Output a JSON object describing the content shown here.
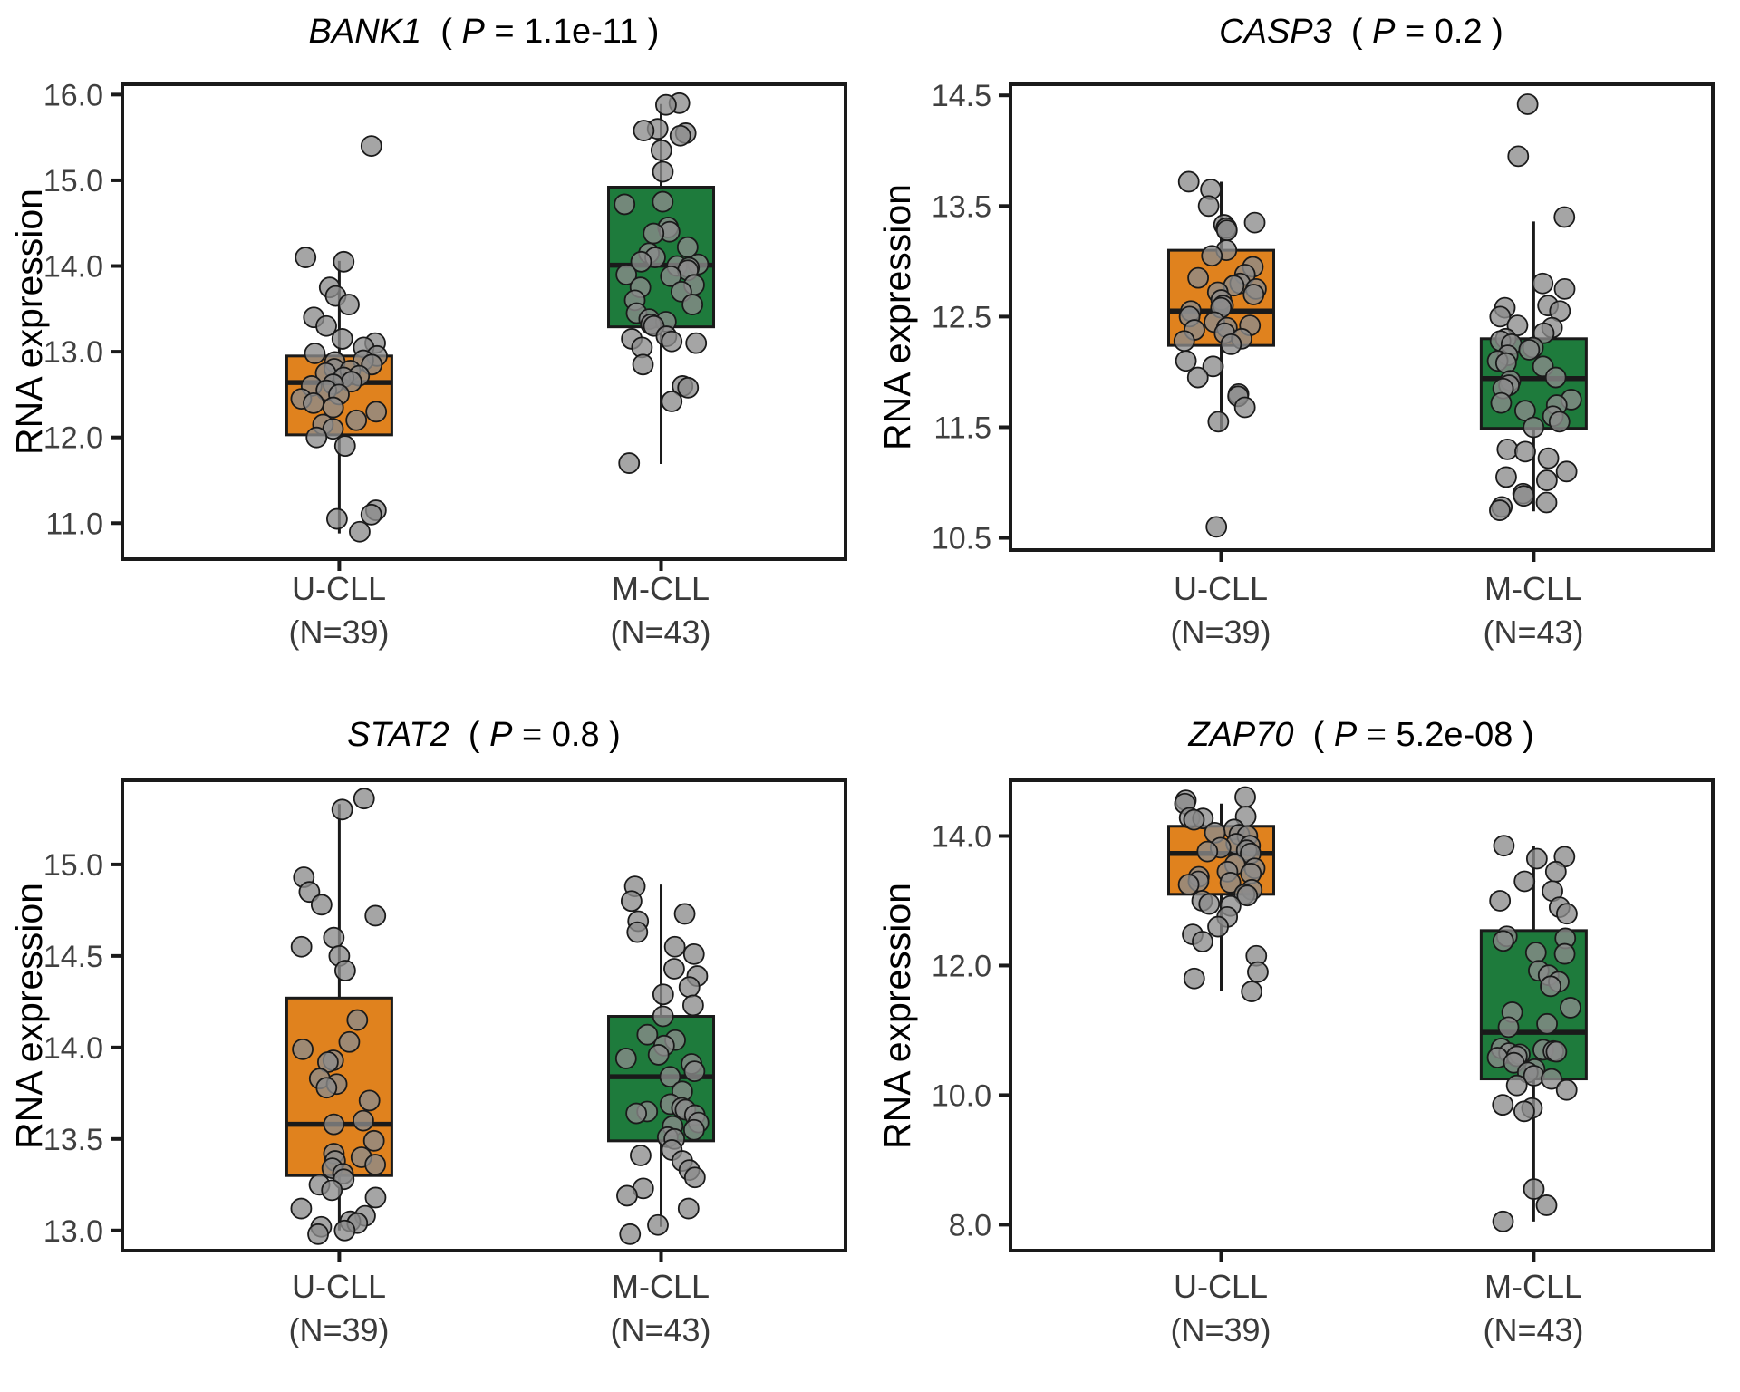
{
  "figure": {
    "background": "#FFFFFF"
  },
  "styles": {
    "ucll_color": "#E0821E",
    "mcll_color": "#1E7B3C",
    "point_fill": "#8C8C8C",
    "point_stroke": "#1A1A1A",
    "box_stroke": "#1A1A1A",
    "axis_text_color": "#404040",
    "title_color": "#000000"
  },
  "chart_data": [
    {
      "type": "box",
      "gene": "BANK1",
      "title_open": "  ( ",
      "p_letter": "P",
      "p_rest": " = 1.1e-11 )",
      "p_value": "1.1e-11",
      "ylabel": "RNA expression",
      "ylim": [
        10.58,
        16.12
      ],
      "yticks": [
        {
          "v": 11.0,
          "label": "11.0"
        },
        {
          "v": 12.0,
          "label": "12.0"
        },
        {
          "v": 13.0,
          "label": "13.0"
        },
        {
          "v": 14.0,
          "label": "14.0"
        },
        {
          "v": 15.0,
          "label": "15.0"
        },
        {
          "v": 16.0,
          "label": "16.0"
        }
      ],
      "groups": [
        {
          "label": "U-CLL",
          "n_label": "(N=39)",
          "n": 39,
          "color": "#E0821E",
          "box": {
            "whisker_low": 10.88,
            "q1": 12.03,
            "median": 12.64,
            "q3": 12.95,
            "whisker_high": 14.06
          },
          "points": [
            15.4,
            14.1,
            14.05,
            13.75,
            13.65,
            13.55,
            13.4,
            13.3,
            13.15,
            13.1,
            13.05,
            12.98,
            12.95,
            12.9,
            12.88,
            12.85,
            12.8,
            12.78,
            12.75,
            12.72,
            12.7,
            12.65,
            12.62,
            12.6,
            12.55,
            12.5,
            12.45,
            12.4,
            12.35,
            12.3,
            12.2,
            12.15,
            12.1,
            12.0,
            11.9,
            11.15,
            11.1,
            11.05,
            10.9
          ]
        },
        {
          "label": "M-CLL",
          "n_label": "(N=43)",
          "n": 43,
          "color": "#1E7B3C",
          "box": {
            "whisker_low": 11.69,
            "q1": 13.29,
            "median": 14.01,
            "q3": 14.92,
            "whisker_high": 15.89
          },
          "points": [
            15.9,
            15.88,
            15.6,
            15.58,
            15.55,
            15.52,
            15.35,
            15.1,
            14.75,
            14.72,
            14.45,
            14.4,
            14.38,
            14.22,
            14.15,
            14.1,
            14.05,
            14.02,
            14.0,
            13.98,
            13.95,
            13.9,
            13.88,
            13.78,
            13.75,
            13.7,
            13.6,
            13.55,
            13.45,
            13.38,
            13.35,
            13.32,
            13.3,
            13.18,
            13.15,
            13.12,
            13.1,
            13.05,
            12.85,
            12.6,
            12.58,
            12.42,
            11.7
          ]
        }
      ]
    },
    {
      "type": "box",
      "gene": "CASP3",
      "title_open": "  ( ",
      "p_letter": "P",
      "p_rest": " = 0.2 )",
      "p_value": "0.2",
      "ylabel": "RNA expression",
      "ylim": [
        10.39,
        14.6
      ],
      "yticks": [
        {
          "v": 10.5,
          "label": "10.5"
        },
        {
          "v": 11.5,
          "label": "11.5"
        },
        {
          "v": 12.5,
          "label": "12.5"
        },
        {
          "v": 13.5,
          "label": "13.5"
        },
        {
          "v": 14.5,
          "label": "14.5"
        }
      ],
      "groups": [
        {
          "label": "U-CLL",
          "n_label": "(N=39)",
          "n": 39,
          "color": "#E0821E",
          "box": {
            "whisker_low": 11.48,
            "q1": 12.24,
            "median": 12.55,
            "q3": 13.1,
            "whisker_high": 13.72
          },
          "points": [
            13.72,
            13.65,
            13.5,
            13.35,
            13.33,
            13.3,
            13.3,
            13.28,
            13.1,
            13.05,
            12.95,
            12.88,
            12.85,
            12.8,
            12.78,
            12.75,
            12.72,
            12.7,
            12.65,
            12.6,
            12.58,
            12.55,
            12.5,
            12.45,
            12.42,
            12.4,
            12.38,
            12.35,
            12.3,
            12.28,
            12.25,
            12.1,
            12.05,
            11.95,
            11.8,
            11.78,
            11.68,
            11.55,
            10.6
          ]
        },
        {
          "label": "M-CLL",
          "n_label": "(N=43)",
          "n": 43,
          "color": "#1E7B3C",
          "box": {
            "whisker_low": 10.74,
            "q1": 11.49,
            "median": 11.94,
            "q3": 12.3,
            "whisker_high": 13.36
          },
          "points": [
            14.42,
            13.95,
            13.4,
            12.8,
            12.75,
            12.6,
            12.58,
            12.55,
            12.5,
            12.42,
            12.4,
            12.35,
            12.3,
            12.28,
            12.25,
            12.22,
            12.2,
            12.15,
            12.1,
            12.08,
            12.05,
            11.95,
            11.92,
            11.88,
            11.85,
            11.75,
            11.72,
            11.7,
            11.65,
            11.6,
            11.55,
            11.5,
            11.3,
            11.28,
            11.22,
            11.1,
            11.05,
            11.02,
            10.9,
            10.88,
            10.82,
            10.78,
            10.75
          ]
        }
      ]
    },
    {
      "type": "box",
      "gene": "STAT2",
      "title_open": "  ( ",
      "p_letter": "P",
      "p_rest": " = 0.8 )",
      "p_value": "0.8",
      "ylabel": "RNA expression",
      "ylim": [
        12.89,
        15.46
      ],
      "yticks": [
        {
          "v": 13.0,
          "label": "13.0"
        },
        {
          "v": 13.5,
          "label": "13.5"
        },
        {
          "v": 14.0,
          "label": "14.0"
        },
        {
          "v": 14.5,
          "label": "14.5"
        },
        {
          "v": 15.0,
          "label": "15.0"
        }
      ],
      "groups": [
        {
          "label": "U-CLL",
          "n_label": "(N=39)",
          "n": 39,
          "color": "#E0821E",
          "box": {
            "whisker_low": 13.0,
            "q1": 13.3,
            "median": 13.58,
            "q3": 14.27,
            "whisker_high": 15.33
          },
          "points": [
            15.36,
            15.3,
            14.93,
            14.85,
            14.78,
            14.72,
            14.6,
            14.55,
            14.5,
            14.42,
            14.15,
            14.03,
            13.99,
            13.93,
            13.92,
            13.83,
            13.8,
            13.78,
            13.71,
            13.6,
            13.58,
            13.49,
            13.42,
            13.4,
            13.38,
            13.36,
            13.34,
            13.31,
            13.28,
            13.25,
            13.22,
            13.18,
            13.12,
            13.08,
            13.05,
            13.04,
            13.02,
            13.0,
            12.98
          ]
        },
        {
          "label": "M-CLL",
          "n_label": "(N=43)",
          "n": 43,
          "color": "#1E7B3C",
          "box": {
            "whisker_low": 13.02,
            "q1": 13.49,
            "median": 13.84,
            "q3": 14.17,
            "whisker_high": 14.89
          },
          "points": [
            14.88,
            14.8,
            14.73,
            14.69,
            14.63,
            14.55,
            14.51,
            14.43,
            14.39,
            14.33,
            14.29,
            14.23,
            14.17,
            14.07,
            14.04,
            14.01,
            13.96,
            13.94,
            13.91,
            13.87,
            13.84,
            13.76,
            13.69,
            13.67,
            13.66,
            13.65,
            13.64,
            13.63,
            13.59,
            13.57,
            13.55,
            13.51,
            13.5,
            13.44,
            13.41,
            13.38,
            13.33,
            13.29,
            13.23,
            13.19,
            13.12,
            13.03,
            12.98
          ]
        }
      ]
    },
    {
      "type": "box",
      "gene": "ZAP70",
      "title_open": "  ( ",
      "p_letter": "P",
      "p_rest": " = 5.2e-08 )",
      "p_value": "5.2e-08",
      "ylabel": "RNA expression",
      "ylim": [
        7.6,
        14.86
      ],
      "yticks": [
        {
          "v": 8.0,
          "label": "8.0"
        },
        {
          "v": 10.0,
          "label": "10.0"
        },
        {
          "v": 12.0,
          "label": "12.0"
        },
        {
          "v": 14.0,
          "label": "14.0"
        }
      ],
      "groups": [
        {
          "label": "U-CLL",
          "n_label": "(N=39)",
          "n": 39,
          "color": "#E0821E",
          "box": {
            "whisker_low": 11.6,
            "q1": 13.1,
            "median": 13.73,
            "q3": 14.15,
            "whisker_high": 14.5
          },
          "points": [
            14.6,
            14.55,
            14.5,
            14.3,
            14.28,
            14.27,
            14.25,
            14.1,
            14.05,
            14.02,
            14.0,
            13.88,
            13.85,
            13.82,
            13.78,
            13.76,
            13.73,
            13.56,
            13.5,
            13.45,
            13.42,
            13.37,
            13.3,
            13.28,
            13.25,
            13.17,
            13.1,
            13.08,
            13.0,
            12.95,
            12.92,
            12.75,
            12.6,
            12.48,
            12.37,
            12.15,
            11.9,
            11.8,
            11.6
          ]
        },
        {
          "label": "M-CLL",
          "n_label": "(N=43)",
          "n": 43,
          "color": "#1E7B3C",
          "box": {
            "whisker_low": 8.05,
            "q1": 10.25,
            "median": 10.97,
            "q3": 12.54,
            "whisker_high": 13.85
          },
          "points": [
            13.85,
            13.68,
            13.65,
            13.45,
            13.3,
            13.15,
            13.0,
            12.9,
            12.8,
            12.45,
            12.42,
            12.38,
            12.2,
            12.18,
            11.92,
            11.85,
            11.75,
            11.68,
            11.35,
            11.28,
            11.1,
            11.05,
            10.72,
            10.7,
            10.68,
            10.67,
            10.65,
            10.63,
            10.6,
            10.58,
            10.5,
            10.4,
            10.35,
            10.3,
            10.25,
            10.15,
            10.08,
            9.85,
            9.8,
            9.75,
            8.55,
            8.3,
            8.05
          ]
        }
      ]
    }
  ]
}
